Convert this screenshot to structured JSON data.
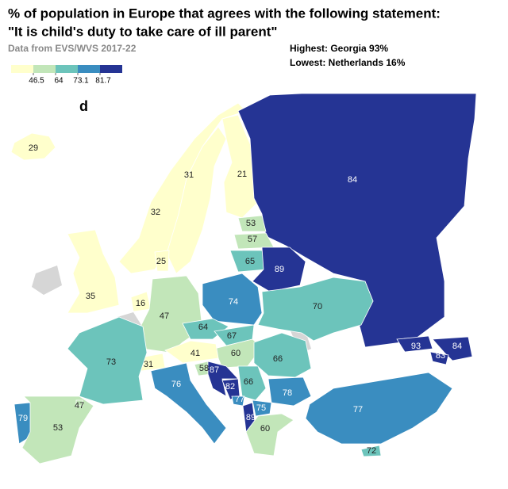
{
  "title_lines": [
    "% of population in Europe that agrees with the following statement:",
    "\"It is child's duty to take care of ill parent\""
  ],
  "source": "Data from EVS/WVS 2017-22",
  "highest": "Highest: Georgia 93%",
  "lowest": "Lowest:  Netherlands 16%",
  "panel_label": "d",
  "legend": {
    "breaks": [
      46.5,
      64,
      73.1,
      81.7
    ],
    "colors": [
      "#ffffcc",
      "#c2e6b9",
      "#6cc4bb",
      "#3a8dc0",
      "#253494"
    ]
  },
  "region_values": [
    29,
    32,
    31,
    21,
    84,
    53,
    57,
    65,
    89,
    25,
    35,
    16,
    47,
    74,
    70,
    64,
    67,
    60,
    41,
    31,
    73,
    66,
    58,
    87,
    76,
    82,
    66,
    78,
    77,
    89,
    75,
    60,
    77,
    72,
    79,
    53,
    47,
    93,
    84,
    83
  ]
}
